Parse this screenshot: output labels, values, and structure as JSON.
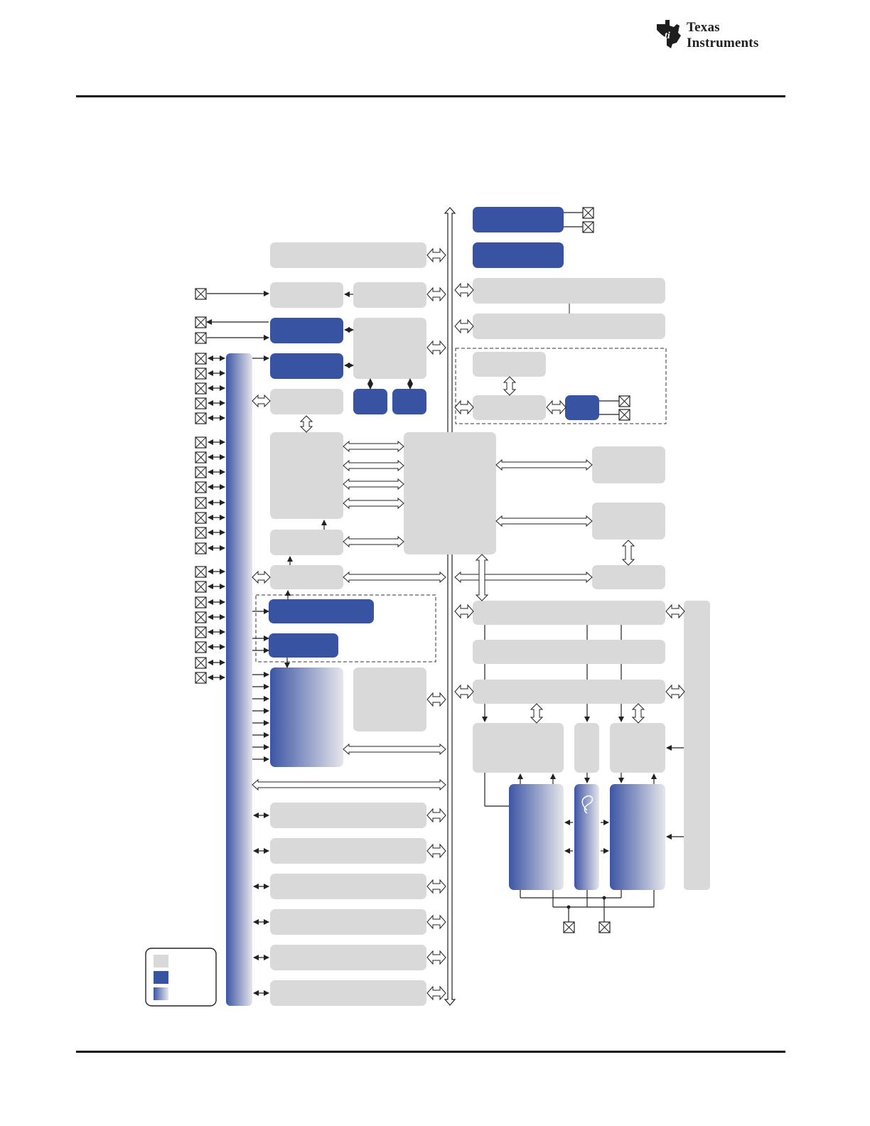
{
  "header": {
    "logo_line1": "Texas",
    "logo_line2": "Instruments"
  },
  "colors": {
    "light_block": "#d9d9d9",
    "dark_block": "#3953a3",
    "gradient_start": "#3d55a5",
    "gradient_end": "#e6e6ea",
    "line": "#222222",
    "dashed": "#333333"
  }
}
